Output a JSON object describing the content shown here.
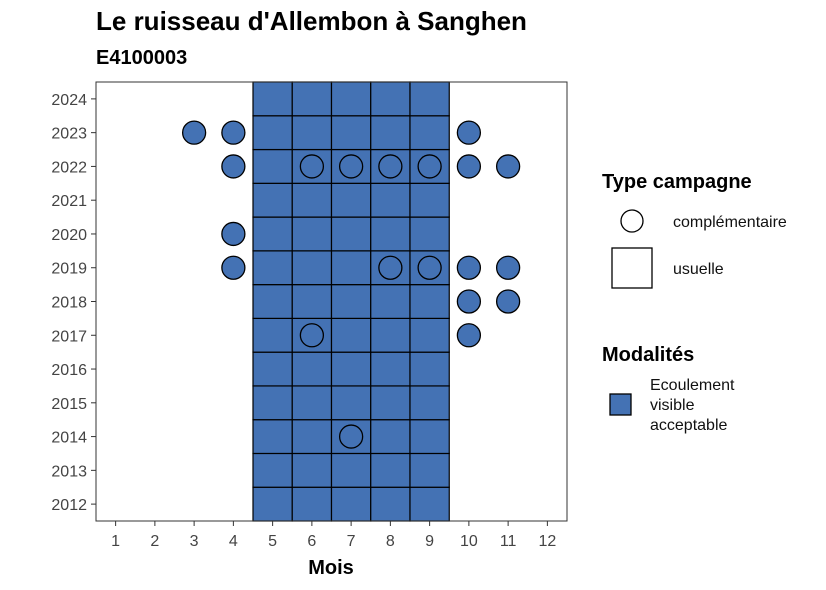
{
  "chart_data": {
    "type": "scatter",
    "title": "Le ruisseau d'Allembon à Sanghen",
    "subtitle": "E4100003",
    "xlabel": "Mois",
    "ylabel": "",
    "x_ticks": [
      1,
      2,
      3,
      4,
      5,
      6,
      7,
      8,
      9,
      10,
      11,
      12
    ],
    "y_ticks": [
      2012,
      2013,
      2014,
      2015,
      2016,
      2017,
      2018,
      2019,
      2020,
      2021,
      2022,
      2023,
      2024
    ],
    "xlim": [
      0.5,
      12.5
    ],
    "ylim": [
      2011.5,
      2024.5
    ],
    "grid": false,
    "fill_color": "#4472B4",
    "usuelle": {
      "months": [
        5,
        6,
        7,
        8,
        9
      ],
      "years": [
        2012,
        2013,
        2014,
        2015,
        2016,
        2017,
        2018,
        2019,
        2020,
        2021,
        2022,
        2023,
        2024
      ]
    },
    "complementaire": [
      {
        "year": 2023,
        "months": [
          3,
          4,
          10
        ]
      },
      {
        "year": 2022,
        "months": [
          4,
          6,
          7,
          8,
          9,
          10,
          11
        ]
      },
      {
        "year": 2020,
        "months": [
          4
        ]
      },
      {
        "year": 2019,
        "months": [
          4,
          8,
          9,
          10,
          11
        ]
      },
      {
        "year": 2018,
        "months": [
          10,
          11
        ]
      },
      {
        "year": 2017,
        "months": [
          6,
          10
        ]
      },
      {
        "year": 2014,
        "months": [
          7
        ]
      }
    ],
    "legend": {
      "placement": "right",
      "type_title": "Type campagne",
      "type_items": [
        "complémentaire",
        "usuelle"
      ],
      "modalites_title": "Modalités",
      "modalites_items": [
        "Ecoulement visible acceptable"
      ],
      "modalites_lines": [
        "Ecoulement",
        "visible",
        "acceptable"
      ]
    }
  }
}
